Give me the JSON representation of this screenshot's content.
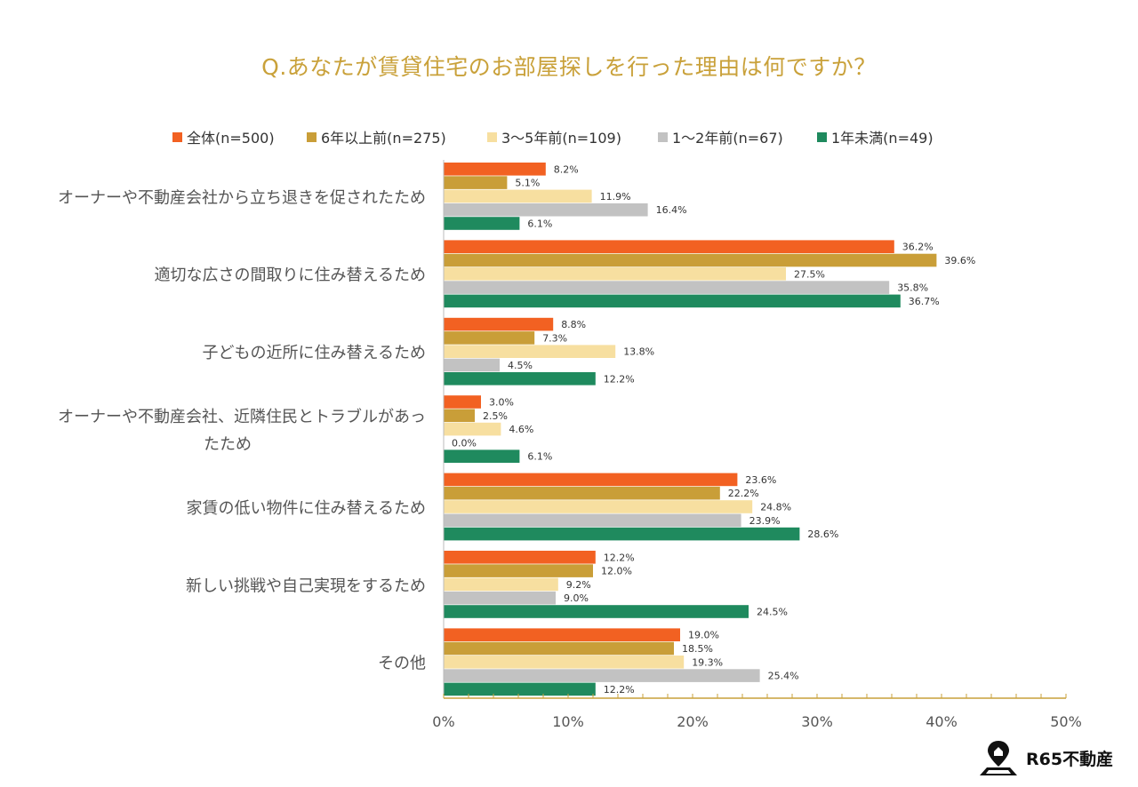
{
  "chart_data": {
    "type": "bar",
    "orientation": "horizontal",
    "title": "Q.あなたが賃貸住宅のお部屋探しを行った理由は何ですか？",
    "xlim": [
      0,
      50
    ],
    "xticks": [
      "0%",
      "10%",
      "20%",
      "30%",
      "40%",
      "50%"
    ],
    "value_suffix": "%",
    "categories": [
      [
        "オーナーや不動産会社から立ち退きを促されたため"
      ],
      [
        "適切な広さの間取りに住み替えるため"
      ],
      [
        "子どもの近所に住み替えるため"
      ],
      [
        "オーナーや不動産会社、近隣住民とトラブルがあっ",
        "たため"
      ],
      [
        "家賃の低い物件に住み替えるため"
      ],
      [
        "新しい挑戦や自己実現をするため"
      ],
      [
        "その他"
      ]
    ],
    "series": [
      {
        "name": "全体(n=500)",
        "color": "#f26122",
        "values": [
          8.2,
          36.2,
          8.8,
          3.0,
          23.6,
          12.2,
          19.0
        ]
      },
      {
        "name": "6年以上前(n=275)",
        "color": "#c99e38",
        "values": [
          5.1,
          39.6,
          7.3,
          2.5,
          22.2,
          12.0,
          18.5
        ]
      },
      {
        "name": "3〜5年前(n=109)",
        "color": "#f7dfa0",
        "values": [
          11.9,
          27.5,
          13.8,
          4.6,
          24.8,
          9.2,
          19.3
        ]
      },
      {
        "name": "1〜2年前(n=67)",
        "color": "#c2c2c2",
        "values": [
          16.4,
          35.8,
          4.5,
          0.0,
          23.9,
          9.0,
          25.4
        ]
      },
      {
        "name": "1年未満(n=49)",
        "color": "#1f8a5e",
        "values": [
          6.1,
          36.7,
          12.2,
          6.1,
          28.6,
          24.5,
          12.2
        ]
      }
    ],
    "axis_color": "#c9a13a"
  },
  "brand": {
    "name": "R65不動産",
    "icon": "house-pin-icon"
  }
}
